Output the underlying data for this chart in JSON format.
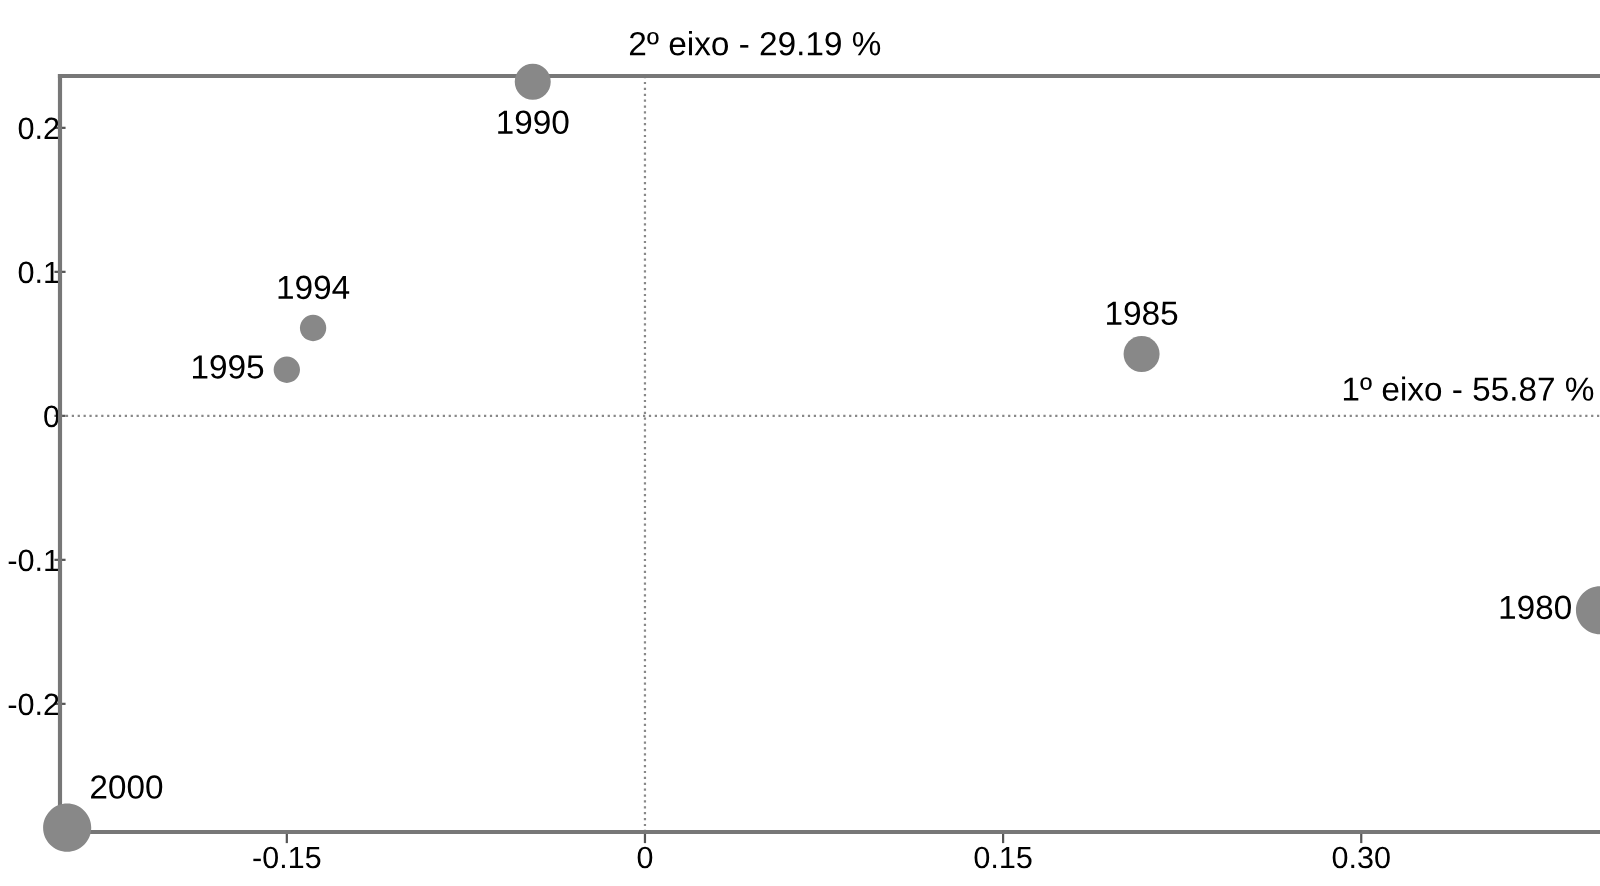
{
  "chart_data": {
    "type": "bubble",
    "x": [
      -0.047,
      -0.139,
      -0.15,
      0.208,
      0.4,
      -0.242
    ],
    "values": [
      0.232,
      0.061,
      0.032,
      0.043,
      -0.135,
      -0.286
    ],
    "sizes": [
      0.56,
      0.3,
      0.3,
      0.56,
      1,
      1
    ],
    "color": "#888888",
    "xlim": [
      -0.245,
      0.4
    ],
    "ylim": [
      -0.289,
      0.236
    ],
    "xticks": [
      {
        "value": -0.15,
        "label": "-0.15"
      },
      0,
      {
        "value": 0.15,
        "label": "0.15"
      },
      {
        "value": 0.3,
        "label": "0.30"
      }
    ],
    "yticks": [
      {
        "value": -0.2,
        "label": "-0.2"
      },
      {
        "value": -0.1,
        "label": "-0.1"
      },
      0,
      0.1,
      0.2
    ],
    "ref_lines": [
      {
        "axis": "x",
        "value": 0,
        "label": "2º eixo - 29.19 %",
        "line_style": "dotted",
        "color": "#888888"
      },
      {
        "axis": "y",
        "value": 0,
        "label": "1º eixo - 55.87 %",
        "line_style": "dotted",
        "color": "#888888"
      }
    ],
    "annotations": [
      {
        "text": "1990",
        "x": -0.047,
        "y": 0.232
      },
      {
        "text": "1994",
        "x": -0.139,
        "y": 0.061
      },
      {
        "text": "1995",
        "x": -0.15,
        "y": 0.032
      },
      {
        "text": "1985",
        "x": 0.208,
        "y": 0.043
      },
      {
        "text": "1980",
        "x": 0.4,
        "y": -0.135
      },
      {
        "text": "2000",
        "x": -0.242,
        "y": -0.286
      }
    ],
    "grid": false
  }
}
